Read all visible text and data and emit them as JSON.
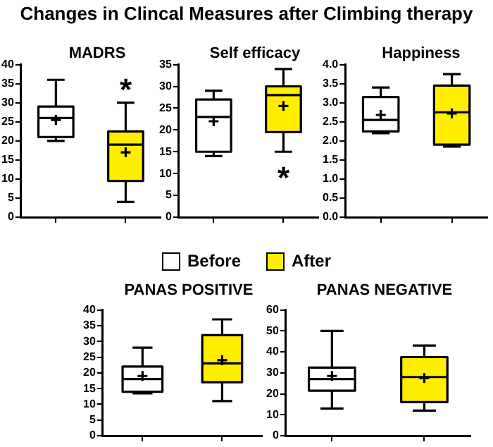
{
  "chart_data": [
    {
      "type": "box",
      "title": "MADRS",
      "annotations": [
        "Changes in Clincal Measures after Climbing therapy",
        "*"
      ],
      "categories": [
        null,
        null
      ],
      "legend": "bottom",
      "ylim": [
        0,
        40
      ],
      "yticks": [
        0,
        5,
        10,
        15,
        20,
        25,
        30,
        35,
        40
      ],
      "tick_labels": "y",
      "series": [
        {
          "name": "Before",
          "color": "#ffffff",
          "boxes": [
            {
              "low": 20,
              "q1": 21,
              "median": 26,
              "q3": 29,
              "high": 36,
              "mean": 25.5
            },
            null
          ]
        },
        {
          "name": "After",
          "color": "#ffee00",
          "boxes": [
            null,
            {
              "low": 4,
              "q1": 9.5,
              "median": 19,
              "q3": 22.5,
              "high": 30,
              "mean": 17
            }
          ]
        }
      ]
    },
    {
      "type": "box",
      "title": "Self efficacy",
      "annotations": [
        "*"
      ],
      "categories": [
        null,
        null
      ],
      "ylim": [
        0,
        35
      ],
      "yticks": [
        0,
        5,
        10,
        15,
        20,
        25,
        30,
        35
      ],
      "tick_labels": "y",
      "series": [
        {
          "color": "#ffffff",
          "boxes": [
            {
              "low": 14,
              "q1": 15,
              "median": 23,
              "q3": 27,
              "high": 29,
              "mean": 22
            },
            null
          ]
        },
        {
          "color": "#ffee00",
          "boxes": [
            null,
            {
              "low": 15,
              "q1": 19.5,
              "median": 28,
              "q3": 30,
              "high": 34,
              "mean": 25.5
            }
          ]
        }
      ]
    },
    {
      "type": "box",
      "title": "Happiness",
      "categories": [
        null,
        null
      ],
      "ylim": [
        0,
        4
      ],
      "yticks": [
        {
          "value": 0,
          "label": "0.0"
        },
        {
          "value": 0.5,
          "label": "0.5"
        },
        {
          "value": 1,
          "label": "1.0"
        },
        {
          "value": 1.5,
          "label": "1.5"
        },
        {
          "value": 2,
          "label": "2.0"
        },
        {
          "value": 2.5,
          "label": "2.5"
        },
        {
          "value": 3,
          "label": "3.0"
        },
        {
          "value": 3.5,
          "label": "3.5"
        },
        {
          "value": 4,
          "label": "4.0"
        }
      ],
      "tick_labels": "y",
      "series": [
        {
          "color": "#ffffff",
          "boxes": [
            {
              "low": 2.2,
              "q1": 2.25,
              "median": 2.55,
              "q3": 3.15,
              "high": 3.4,
              "mean": 2.68
            },
            null
          ]
        },
        {
          "color": "#ffee00",
          "boxes": [
            null,
            {
              "low": 1.85,
              "q1": 1.9,
              "median": 2.75,
              "q3": 3.45,
              "high": 3.75,
              "mean": 2.72
            }
          ]
        }
      ]
    },
    {
      "type": "box",
      "title": "PANAS POSITIVE",
      "categories": [
        null,
        null
      ],
      "ylim": [
        0,
        40
      ],
      "yticks": [
        0,
        5,
        10,
        15,
        20,
        25,
        30,
        35,
        40
      ],
      "tick_labels": "y",
      "series": [
        {
          "color": "#ffffff",
          "boxes": [
            {
              "low": 13.5,
              "q1": 14,
              "median": 18,
              "q3": 22,
              "high": 28,
              "mean": 19
            },
            null
          ]
        },
        {
          "color": "#ffee00",
          "boxes": [
            null,
            {
              "low": 11,
              "q1": 17,
              "median": 23,
              "q3": 32,
              "high": 37,
              "mean": 24
            }
          ]
        }
      ]
    },
    {
      "type": "box",
      "title": "PANAS NEGATIVE",
      "categories": [
        null,
        null
      ],
      "ylim": [
        0,
        60
      ],
      "yticks": [
        0,
        10,
        20,
        30,
        40,
        50,
        60
      ],
      "tick_labels": "y",
      "series": [
        {
          "color": "#ffffff",
          "boxes": [
            {
              "low": 13,
              "q1": 21.5,
              "median": 27,
              "q3": 32.5,
              "high": 50,
              "mean": 28.5
            },
            null
          ]
        },
        {
          "color": "#ffee00",
          "boxes": [
            null,
            {
              "low": 12,
              "q1": 16,
              "median": 28,
              "q3": 37.5,
              "high": 43,
              "mean": 27.5
            }
          ]
        }
      ]
    }
  ]
}
